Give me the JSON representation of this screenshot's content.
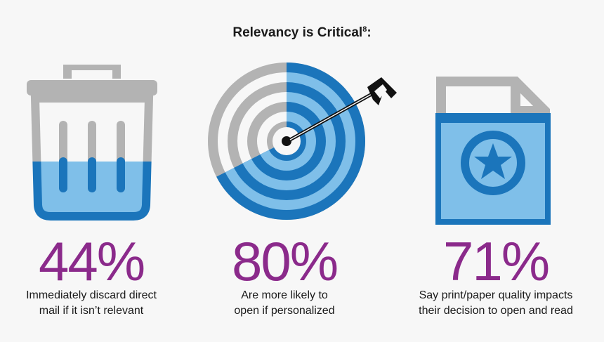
{
  "title": {
    "text": "Relevancy is Critical",
    "sup": "8",
    "suffix": ":"
  },
  "colors": {
    "gray": "#b3b3b3",
    "blue_dark": "#1b75bb",
    "blue_light": "#7fbfe9",
    "purple": "#8b2a8b",
    "text": "#1a1a1a"
  },
  "stats": [
    {
      "icon": "trash-can-icon",
      "value": "44%",
      "lines": [
        "Immediately discard direct",
        "mail if it isn’t relevant"
      ]
    },
    {
      "icon": "target-arrow-icon",
      "value": "80%",
      "lines": [
        "Are more likely to",
        "open if personalized"
      ]
    },
    {
      "icon": "document-star-icon",
      "value": "71%",
      "lines": [
        "Say print/paper quality impacts",
        "their decision to open and read"
      ]
    }
  ]
}
